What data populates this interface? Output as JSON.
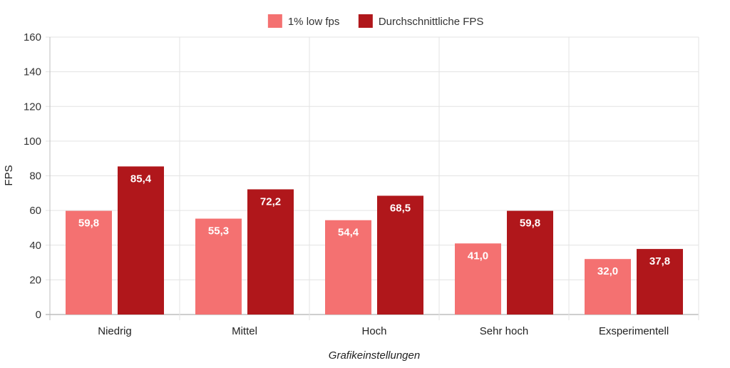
{
  "chart_data": {
    "type": "bar",
    "title": "",
    "xlabel": "Grafikeinstellungen",
    "ylabel": "FPS",
    "ylim": [
      0,
      160
    ],
    "yticks": [
      0,
      20,
      40,
      60,
      80,
      100,
      120,
      140,
      160
    ],
    "grid": true,
    "legend_position": "top-center",
    "categories": [
      "Niedrig",
      "Mittel",
      "Hoch",
      "Sehr hoch",
      "Exsperimentell"
    ],
    "series": [
      {
        "name": "1% low fps",
        "color": "#f47171",
        "values": [
          59.8,
          55.3,
          54.4,
          41.0,
          32.0
        ],
        "labels": [
          "59,8",
          "55,3",
          "54,4",
          "41,0",
          "32,0"
        ]
      },
      {
        "name": "Durchschnittliche FPS",
        "color": "#b0171b",
        "values": [
          85.4,
          72.2,
          68.5,
          59.8,
          37.8
        ],
        "labels": [
          "85,4",
          "72,2",
          "68,5",
          "59,8",
          "37,8"
        ]
      }
    ]
  }
}
